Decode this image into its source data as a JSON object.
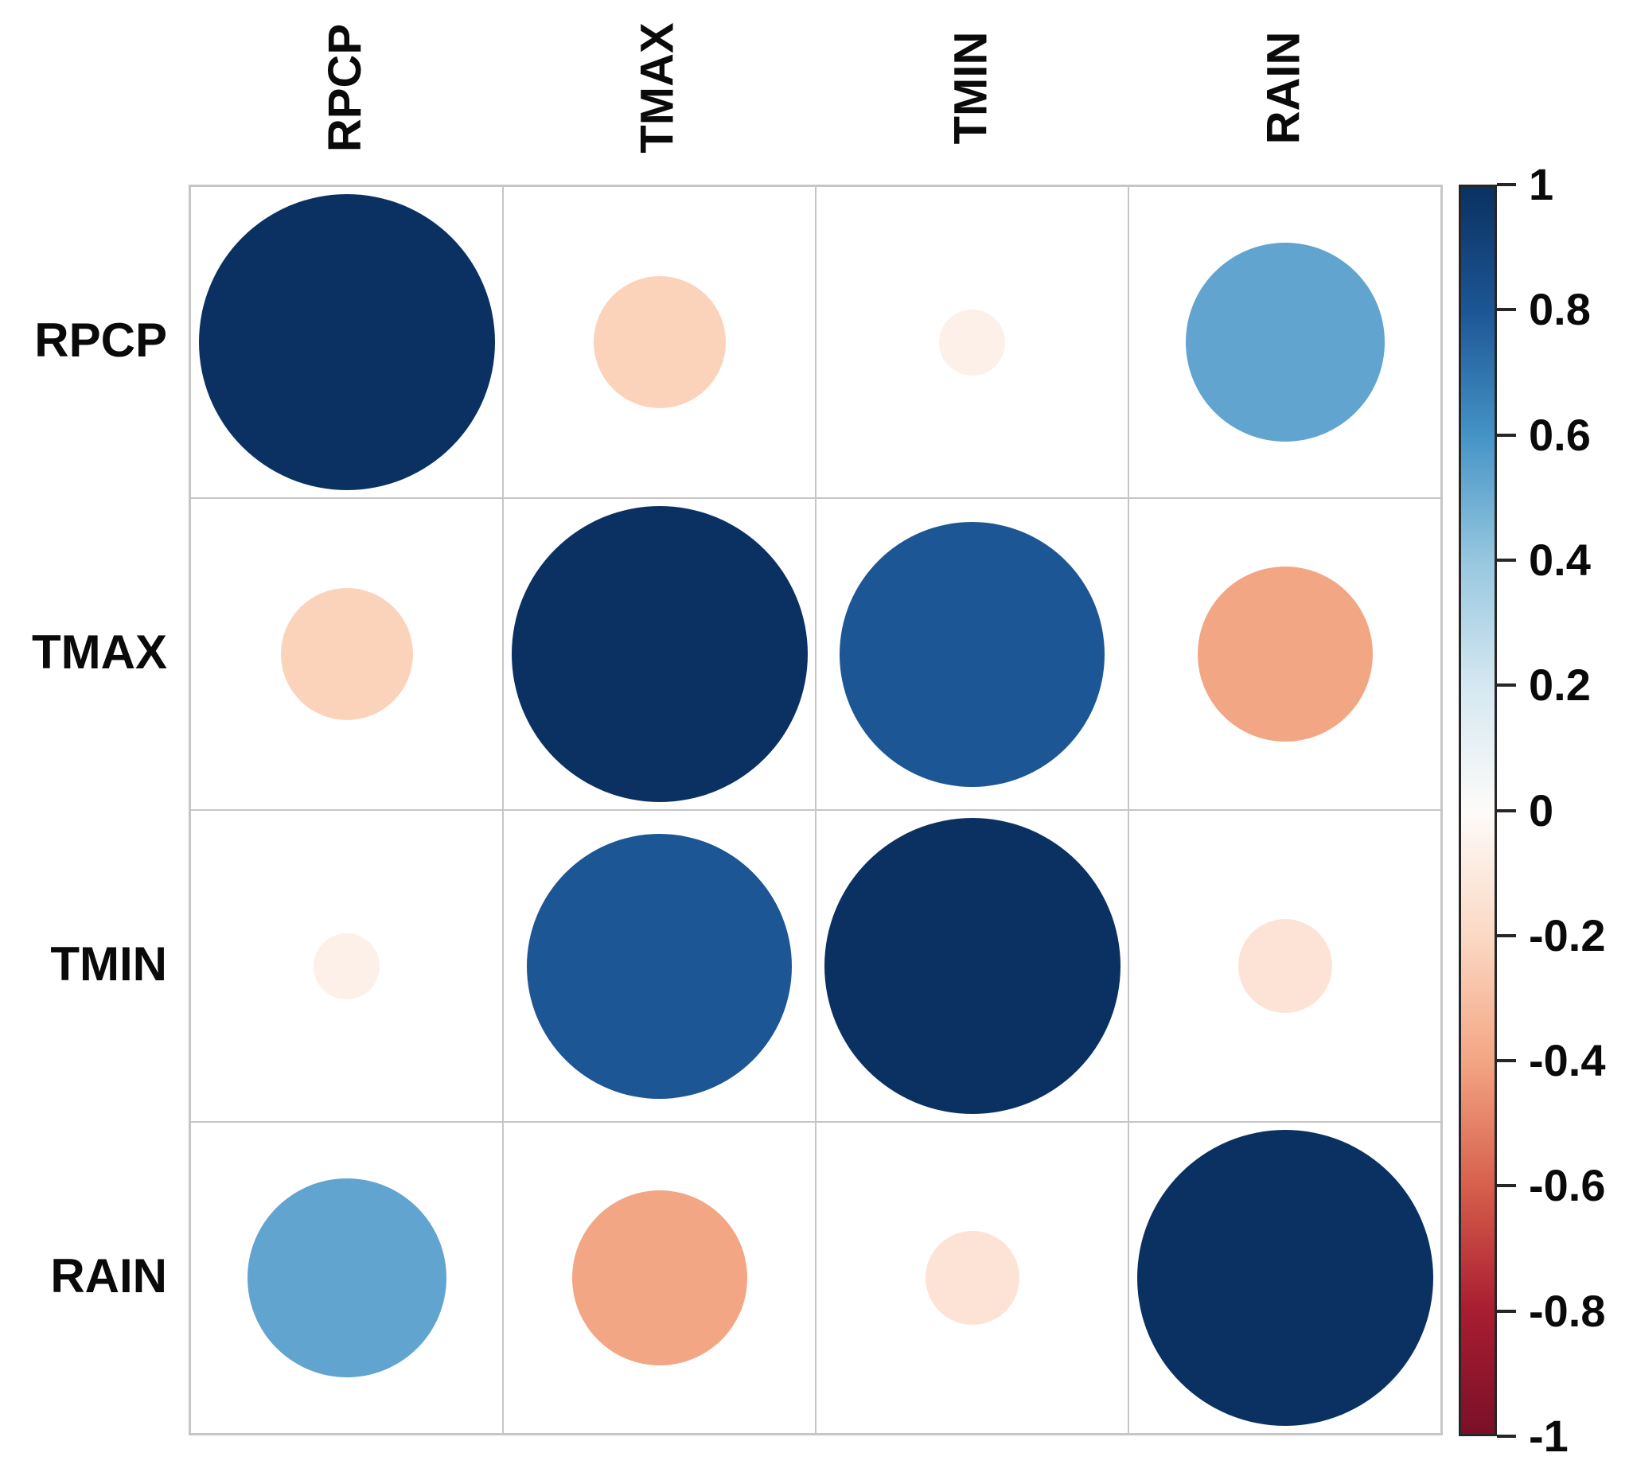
{
  "chart_data": {
    "type": "heatmap",
    "subtype": "correlation-bubble-matrix",
    "title": "",
    "variables": [
      "RPCP",
      "TMAX",
      "TMIN",
      "RAIN"
    ],
    "matrix": [
      [
        1.0,
        -0.2,
        -0.05,
        0.45
      ],
      [
        -0.2,
        1.0,
        0.8,
        -0.35
      ],
      [
        -0.05,
        0.8,
        1.0,
        -0.1
      ],
      [
        0.45,
        -0.35,
        -0.1,
        1.0
      ]
    ],
    "cell_colors": [
      [
        "#0a3161",
        "#fbd3bb",
        "#fdf0e8",
        "#62a4d0"
      ],
      [
        "#fbd3bb",
        "#0a3161",
        "#1d5695",
        "#f3a684"
      ],
      [
        "#fdf0e8",
        "#1d5695",
        "#0a3161",
        "#fde3d6"
      ],
      [
        "#62a4d0",
        "#f3a684",
        "#fde3d6",
        "#0a3161"
      ]
    ],
    "size_encoding": "circle area proportional to |r|",
    "grid_line_color": "#c6c6c6",
    "colorbar": {
      "range": [
        -1,
        1
      ],
      "tick_labels": [
        "1",
        "0.8",
        "0.6",
        "0.4",
        "0.2",
        "0",
        "-0.2",
        "-0.4",
        "-0.6",
        "-0.8",
        "-1"
      ],
      "gradient_stops": [
        {
          "pos": 0,
          "color": "#0a3161"
        },
        {
          "pos": 10,
          "color": "#1d5695"
        },
        {
          "pos": 20,
          "color": "#4494c6"
        },
        {
          "pos": 30,
          "color": "#97c7df"
        },
        {
          "pos": 40,
          "color": "#d5e8f1"
        },
        {
          "pos": 50,
          "color": "#fdfbf9"
        },
        {
          "pos": 60,
          "color": "#fbd9c5"
        },
        {
          "pos": 70,
          "color": "#f3a684"
        },
        {
          "pos": 80,
          "color": "#d7604c"
        },
        {
          "pos": 90,
          "color": "#a91d31"
        },
        {
          "pos": 100,
          "color": "#7a1028"
        }
      ]
    }
  }
}
